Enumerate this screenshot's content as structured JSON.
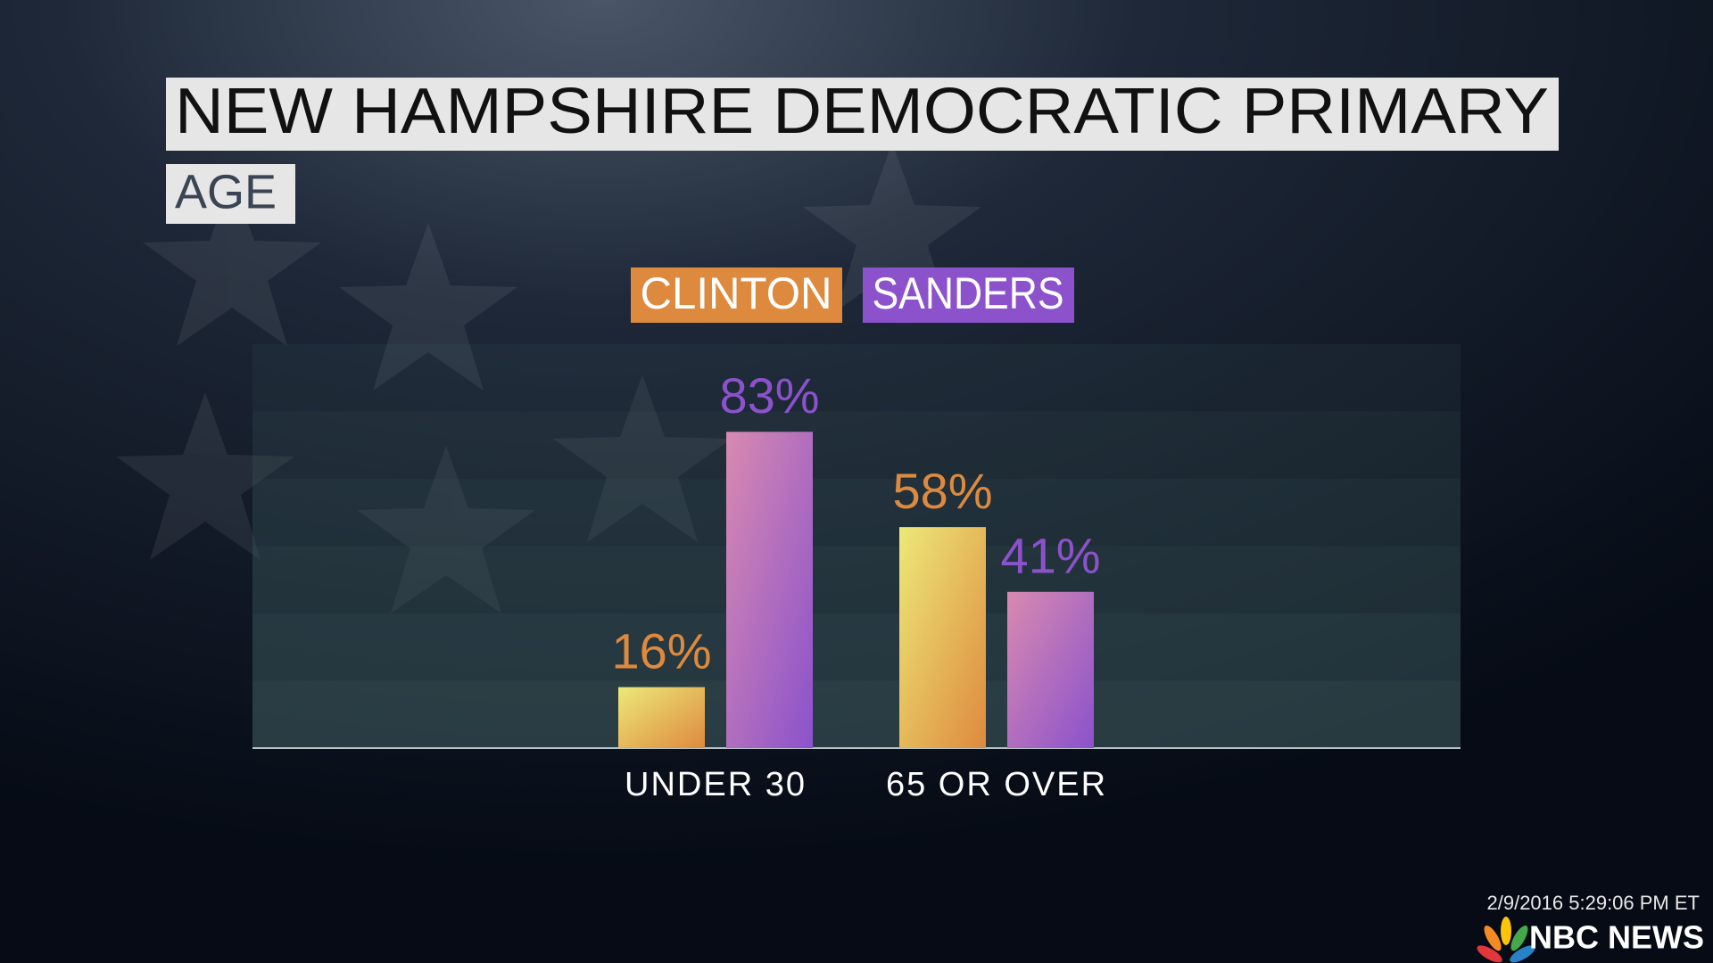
{
  "chart_data": {
    "type": "bar",
    "title": "NEW HAMPSHIRE DEMOCRATIC PRIMARY",
    "subtitle": "AGE",
    "categories": [
      "UNDER 30",
      "65 OR OVER"
    ],
    "series": [
      {
        "name": "CLINTON",
        "color": "#de8a3e",
        "values": [
          16,
          58
        ],
        "value_labels": [
          "16%",
          "58%"
        ]
      },
      {
        "name": "SANDERS",
        "color": "#8b52cc",
        "values": [
          83,
          41
        ],
        "value_labels": [
          "83%",
          "41%"
        ]
      }
    ],
    "ylim": [
      0,
      106
    ]
  },
  "footer": {
    "timestamp": "2/9/2016 5:29:06 PM ET",
    "network": "NBC NEWS"
  }
}
